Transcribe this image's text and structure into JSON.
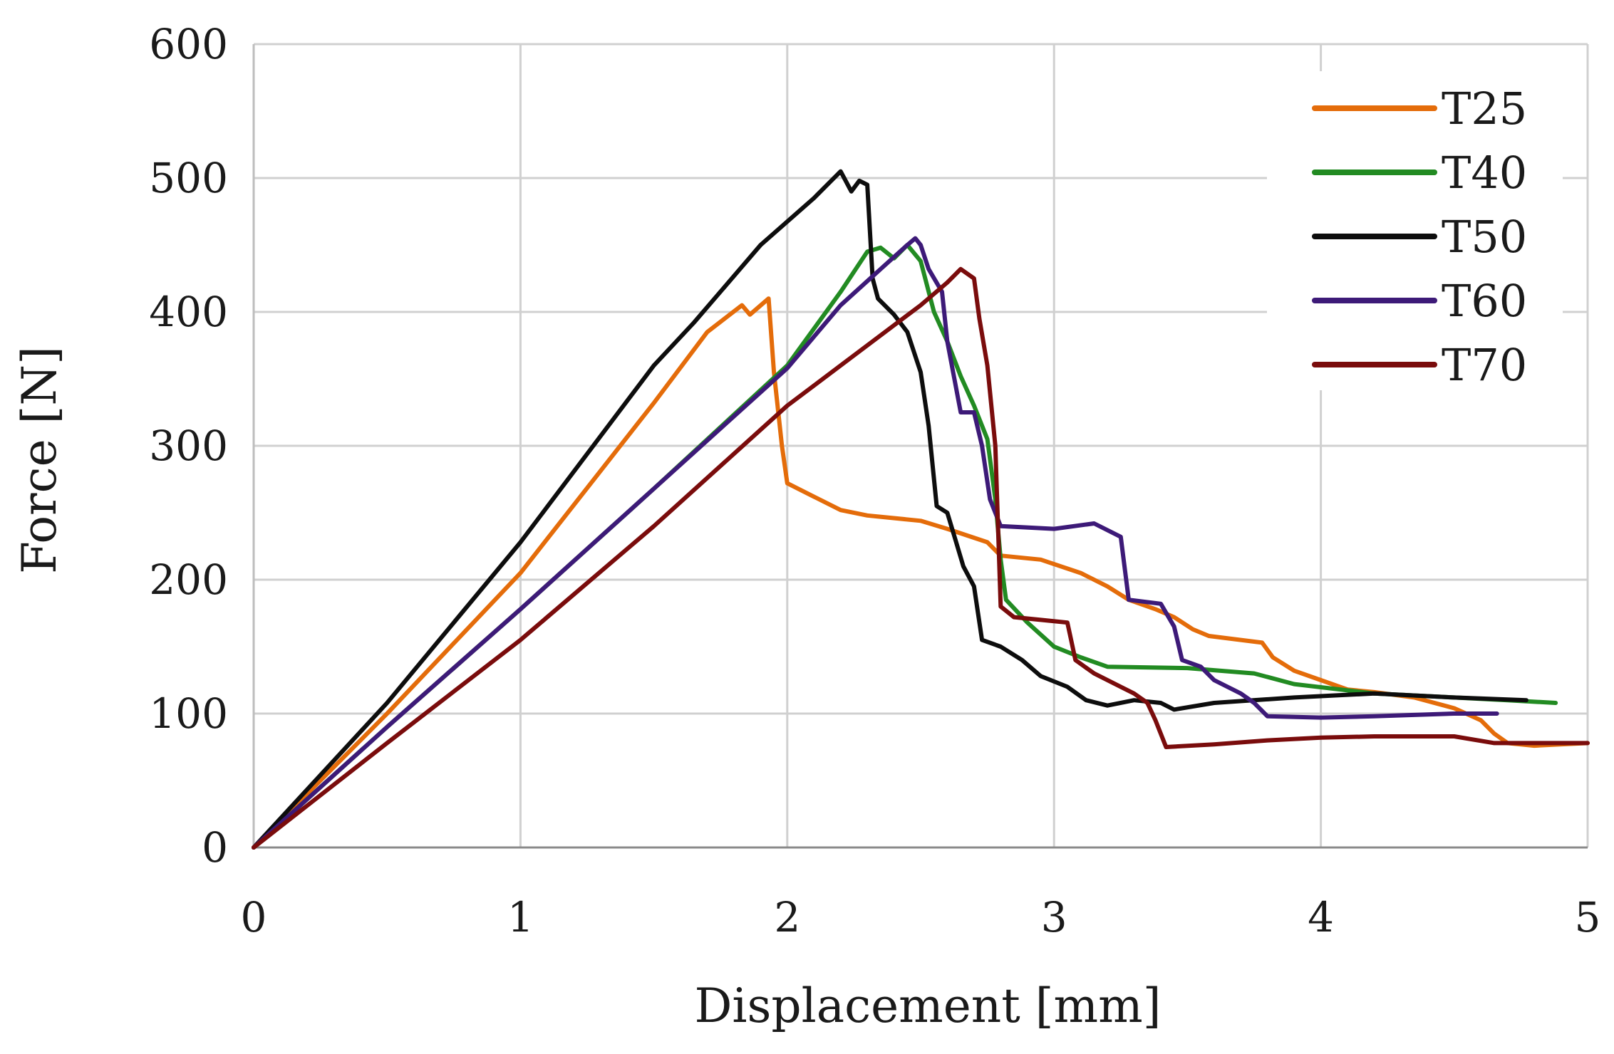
{
  "chart_data": {
    "type": "line",
    "title": "",
    "xlabel": "Displacement [mm]",
    "ylabel": "Force [N]",
    "xlim": [
      0,
      5
    ],
    "ylim": [
      0,
      600
    ],
    "xticks": [
      0,
      1,
      2,
      3,
      4,
      5
    ],
    "yticks": [
      0,
      100,
      200,
      300,
      400,
      500,
      600
    ],
    "grid": true,
    "legend_position": "top-right",
    "series": [
      {
        "name": "T25",
        "color": "#e46c0a",
        "points": [
          [
            0,
            0
          ],
          [
            0.5,
            100
          ],
          [
            1,
            205
          ],
          [
            1.5,
            332
          ],
          [
            1.7,
            385
          ],
          [
            1.83,
            405
          ],
          [
            1.86,
            398
          ],
          [
            1.93,
            410
          ],
          [
            1.95,
            355
          ],
          [
            1.98,
            300
          ],
          [
            2.0,
            272
          ],
          [
            2.1,
            262
          ],
          [
            2.2,
            252
          ],
          [
            2.3,
            248
          ],
          [
            2.5,
            244
          ],
          [
            2.6,
            238
          ],
          [
            2.75,
            228
          ],
          [
            2.8,
            218
          ],
          [
            2.95,
            215
          ],
          [
            3.1,
            205
          ],
          [
            3.2,
            195
          ],
          [
            3.28,
            185
          ],
          [
            3.38,
            178
          ],
          [
            3.45,
            172
          ],
          [
            3.52,
            163
          ],
          [
            3.58,
            158
          ],
          [
            3.78,
            153
          ],
          [
            3.82,
            142
          ],
          [
            3.9,
            132
          ],
          [
            4.0,
            125
          ],
          [
            4.1,
            118
          ],
          [
            4.2,
            116
          ],
          [
            4.35,
            112
          ],
          [
            4.5,
            104
          ],
          [
            4.6,
            95
          ],
          [
            4.65,
            85
          ],
          [
            4.7,
            78
          ],
          [
            4.8,
            76
          ],
          [
            5.0,
            78
          ]
        ]
      },
      {
        "name": "T40",
        "color": "#228b22",
        "points": [
          [
            0,
            0
          ],
          [
            0.5,
            90
          ],
          [
            1,
            178
          ],
          [
            1.5,
            268
          ],
          [
            2.0,
            360
          ],
          [
            2.2,
            415
          ],
          [
            2.3,
            445
          ],
          [
            2.35,
            448
          ],
          [
            2.4,
            440
          ],
          [
            2.45,
            450
          ],
          [
            2.5,
            438
          ],
          [
            2.55,
            400
          ],
          [
            2.6,
            378
          ],
          [
            2.65,
            352
          ],
          [
            2.7,
            330
          ],
          [
            2.75,
            305
          ],
          [
            2.78,
            260
          ],
          [
            2.8,
            215
          ],
          [
            2.82,
            185
          ],
          [
            2.9,
            168
          ],
          [
            3.0,
            150
          ],
          [
            3.1,
            142
          ],
          [
            3.2,
            135
          ],
          [
            3.5,
            134
          ],
          [
            3.75,
            130
          ],
          [
            3.9,
            122
          ],
          [
            4.2,
            115
          ],
          [
            4.5,
            112
          ],
          [
            4.7,
            110
          ],
          [
            4.88,
            108
          ]
        ]
      },
      {
        "name": "T50",
        "color": "#0d0d0d",
        "points": [
          [
            0,
            0
          ],
          [
            0.5,
            108
          ],
          [
            1,
            228
          ],
          [
            1.5,
            360
          ],
          [
            1.65,
            392
          ],
          [
            1.9,
            450
          ],
          [
            2.1,
            485
          ],
          [
            2.2,
            505
          ],
          [
            2.24,
            490
          ],
          [
            2.27,
            498
          ],
          [
            2.3,
            495
          ],
          [
            2.32,
            425
          ],
          [
            2.34,
            410
          ],
          [
            2.4,
            398
          ],
          [
            2.45,
            385
          ],
          [
            2.5,
            355
          ],
          [
            2.53,
            315
          ],
          [
            2.56,
            255
          ],
          [
            2.6,
            250
          ],
          [
            2.63,
            230
          ],
          [
            2.66,
            210
          ],
          [
            2.7,
            195
          ],
          [
            2.73,
            155
          ],
          [
            2.8,
            150
          ],
          [
            2.88,
            140
          ],
          [
            2.95,
            128
          ],
          [
            3.05,
            120
          ],
          [
            3.12,
            110
          ],
          [
            3.2,
            106
          ],
          [
            3.3,
            110
          ],
          [
            3.4,
            108
          ],
          [
            3.45,
            103
          ],
          [
            3.6,
            108
          ],
          [
            3.9,
            112
          ],
          [
            4.2,
            115
          ],
          [
            4.5,
            112
          ],
          [
            4.77,
            110
          ]
        ]
      },
      {
        "name": "T60",
        "color": "#3d1a78",
        "points": [
          [
            0,
            0
          ],
          [
            0.5,
            90
          ],
          [
            1,
            178
          ],
          [
            1.5,
            268
          ],
          [
            2.0,
            358
          ],
          [
            2.2,
            405
          ],
          [
            2.35,
            432
          ],
          [
            2.45,
            450
          ],
          [
            2.48,
            455
          ],
          [
            2.5,
            450
          ],
          [
            2.53,
            432
          ],
          [
            2.58,
            415
          ],
          [
            2.6,
            378
          ],
          [
            2.65,
            325
          ],
          [
            2.7,
            325
          ],
          [
            2.73,
            300
          ],
          [
            2.76,
            260
          ],
          [
            2.8,
            240
          ],
          [
            3.0,
            238
          ],
          [
            3.15,
            242
          ],
          [
            3.25,
            232
          ],
          [
            3.28,
            185
          ],
          [
            3.4,
            182
          ],
          [
            3.45,
            165
          ],
          [
            3.48,
            140
          ],
          [
            3.55,
            135
          ],
          [
            3.6,
            125
          ],
          [
            3.7,
            115
          ],
          [
            3.75,
            108
          ],
          [
            3.8,
            98
          ],
          [
            4.0,
            97
          ],
          [
            4.2,
            98
          ],
          [
            4.5,
            100
          ],
          [
            4.66,
            100
          ]
        ]
      },
      {
        "name": "T70",
        "color": "#7a0c0c",
        "points": [
          [
            0,
            0
          ],
          [
            0.5,
            78
          ],
          [
            1,
            155
          ],
          [
            1.5,
            240
          ],
          [
            2.0,
            330
          ],
          [
            2.3,
            375
          ],
          [
            2.5,
            405
          ],
          [
            2.6,
            422
          ],
          [
            2.65,
            432
          ],
          [
            2.7,
            425
          ],
          [
            2.72,
            395
          ],
          [
            2.75,
            360
          ],
          [
            2.78,
            300
          ],
          [
            2.8,
            180
          ],
          [
            2.85,
            172
          ],
          [
            2.95,
            170
          ],
          [
            3.05,
            168
          ],
          [
            3.08,
            140
          ],
          [
            3.15,
            130
          ],
          [
            3.25,
            120
          ],
          [
            3.3,
            115
          ],
          [
            3.35,
            108
          ],
          [
            3.38,
            95
          ],
          [
            3.42,
            75
          ],
          [
            3.6,
            77
          ],
          [
            3.8,
            80
          ],
          [
            4.0,
            82
          ],
          [
            4.2,
            83
          ],
          [
            4.5,
            83
          ],
          [
            4.65,
            78
          ],
          [
            5.0,
            78
          ]
        ]
      }
    ]
  }
}
